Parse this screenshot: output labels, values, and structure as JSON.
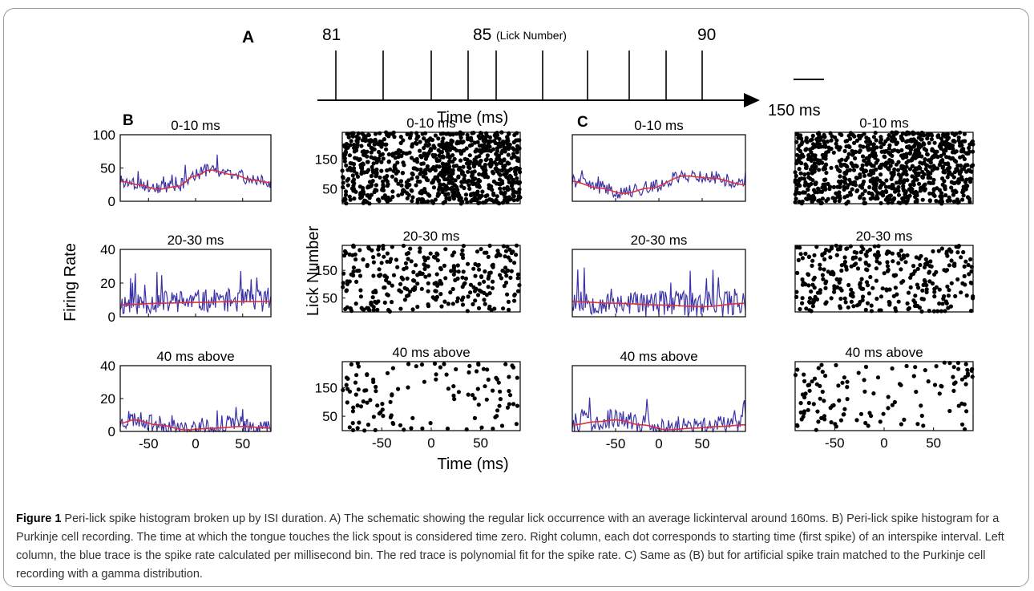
{
  "caption": {
    "label": "Figure 1",
    "text": " Peri-lick spike histogram broken up by ISI duration. A) The schematic showing the regular lick occurrence with an average lickinterval around 160ms. B) Peri-lick spike histogram for a Purkinje cell recording. The time at which the tongue touches the lick spout is considered time zero. Right column, each dot corresponds to starting time (first spike) of an interspike interval. Left column, the blue trace is the spike rate calculated per millisecond bin. The red trace is polynomial fit for the spike rate. C) Same as (B) but for artificial spike train matched to the Purkinje cell recording with a gamma distribution."
  },
  "panel_a": {
    "label": "A",
    "lick_first": "81",
    "lick_mid": "85",
    "lick_mid_note": "(Lick Number)",
    "lick_last": "90",
    "axis_label": "Time (ms)",
    "scale_label": "150 ms"
  },
  "panel_labels": {
    "b": "B",
    "c": "C"
  },
  "axis_text": {
    "firing_rate": "Firing Rate",
    "lick_number": "Lick Number",
    "time": "Time (ms)"
  },
  "row_titles": [
    "0-10 ms",
    "20-30 ms",
    "40 ms above"
  ],
  "colors": {
    "rate_trace": "#3a33a8",
    "fit_trace": "#e0303a",
    "dots": "#000000"
  },
  "chart_data": [
    {
      "type": "schematic",
      "panel": "A",
      "lick_numbers": [
        81,
        82,
        83,
        84,
        85,
        86,
        87,
        88,
        89,
        90
      ],
      "labeled_ticks": [
        81,
        85,
        90
      ],
      "scale_bar_ms": 150
    },
    {
      "type": "line",
      "panel": "B",
      "row": 0,
      "title": "0-10 ms",
      "xlim": [
        -80,
        80
      ],
      "xticks": [
        -50,
        0,
        50
      ],
      "ylim": [
        0,
        100
      ],
      "yticks": [
        0,
        50,
        100
      ],
      "ylabel": "",
      "series": [
        {
          "role": "rate",
          "base": [
            [
              -80,
              30
            ],
            [
              -60,
              25
            ],
            [
              -40,
              18
            ],
            [
              -20,
              22
            ],
            [
              0,
              38
            ],
            [
              15,
              47
            ],
            [
              40,
              40
            ],
            [
              60,
              32
            ],
            [
              80,
              28
            ]
          ],
          "amp": 10,
          "seed": 3
        },
        {
          "role": "fit",
          "base": [
            [
              -80,
              30
            ],
            [
              -60,
              25
            ],
            [
              -40,
              18
            ],
            [
              -20,
              22
            ],
            [
              0,
              38
            ],
            [
              15,
              47
            ],
            [
              40,
              40
            ],
            [
              60,
              32
            ],
            [
              80,
              28
            ]
          ]
        }
      ]
    },
    {
      "type": "line",
      "panel": "B",
      "row": 1,
      "title": "20-30 ms",
      "xlim": [
        -80,
        80
      ],
      "xticks": [
        -50,
        0,
        50
      ],
      "ylim": [
        0,
        40
      ],
      "yticks": [
        0,
        20,
        40
      ],
      "ylabel": "Firing Rate",
      "series": [
        {
          "role": "rate",
          "base": [
            [
              -80,
              7
            ],
            [
              -40,
              8
            ],
            [
              0,
              8.5
            ],
            [
              40,
              9
            ],
            [
              80,
              9
            ]
          ],
          "amp": 7,
          "seed": 11
        },
        {
          "role": "fit",
          "base": [
            [
              -80,
              7
            ],
            [
              -40,
              8
            ],
            [
              0,
              8.5
            ],
            [
              40,
              9
            ],
            [
              80,
              9
            ]
          ]
        }
      ]
    },
    {
      "type": "line",
      "panel": "B",
      "row": 2,
      "title": "40 ms above",
      "xlim": [
        -80,
        80
      ],
      "xticks": [
        -50,
        0,
        50
      ],
      "ylim": [
        0,
        40
      ],
      "yticks": [
        0,
        20,
        40
      ],
      "ylabel": "",
      "series": [
        {
          "role": "rate",
          "base": [
            [
              -80,
              5
            ],
            [
              -65,
              7
            ],
            [
              -40,
              4
            ],
            [
              -10,
              1
            ],
            [
              20,
              2
            ],
            [
              50,
              3
            ],
            [
              80,
              2
            ]
          ],
          "amp": 5,
          "seed": 23
        },
        {
          "role": "fit",
          "base": [
            [
              -80,
              5
            ],
            [
              -65,
              7
            ],
            [
              -40,
              4
            ],
            [
              -10,
              1
            ],
            [
              20,
              2
            ],
            [
              50,
              3
            ],
            [
              80,
              2
            ]
          ]
        }
      ]
    },
    {
      "type": "scatter",
      "panel": "B",
      "row": 0,
      "title": "0-10 ms",
      "xlim": [
        -90,
        90
      ],
      "ylim": [
        0,
        240
      ],
      "yticks": [
        50,
        150
      ],
      "count": 900,
      "seed": 5,
      "density": [
        [
          -90,
          1.0
        ],
        [
          -40,
          0.7
        ],
        [
          -10,
          0.8
        ],
        [
          10,
          1.2
        ],
        [
          90,
          1.0
        ]
      ]
    },
    {
      "type": "scatter",
      "panel": "B",
      "row": 1,
      "title": "20-30 ms",
      "xlim": [
        -90,
        90
      ],
      "ylim": [
        0,
        240
      ],
      "yticks": [
        50,
        150
      ],
      "ylabel": "Lick Number",
      "count": 300,
      "seed": 17,
      "density": [
        [
          -90,
          1
        ],
        [
          90,
          1
        ]
      ]
    },
    {
      "type": "scatter",
      "panel": "B",
      "row": 2,
      "title": "40 ms above",
      "xlim": [
        -90,
        90
      ],
      "xticks": [
        -50,
        0,
        50
      ],
      "ylim": [
        0,
        240
      ],
      "yticks": [
        50,
        150
      ],
      "count": 120,
      "seed": 29,
      "density": [
        [
          -90,
          1.4
        ],
        [
          -40,
          1.0
        ],
        [
          -10,
          0.3
        ],
        [
          20,
          0.6
        ],
        [
          60,
          1.0
        ],
        [
          90,
          1.0
        ]
      ]
    },
    {
      "type": "line",
      "panel": "C",
      "row": 0,
      "title": "0-10 ms",
      "xlim": [
        -100,
        100
      ],
      "xticks": [
        -50,
        0,
        50
      ],
      "ylim": [
        0,
        100
      ],
      "series": [
        {
          "role": "rate",
          "base": [
            [
              -100,
              30
            ],
            [
              -70,
              20
            ],
            [
              -40,
              12
            ],
            [
              -10,
              20
            ],
            [
              30,
              38
            ],
            [
              60,
              35
            ],
            [
              100,
              25
            ]
          ],
          "amp": 10,
          "seed": 41
        },
        {
          "role": "fit",
          "base": [
            [
              -100,
              30
            ],
            [
              -70,
              20
            ],
            [
              -40,
              12
            ],
            [
              -10,
              20
            ],
            [
              30,
              38
            ],
            [
              60,
              35
            ],
            [
              100,
              25
            ]
          ]
        }
      ]
    },
    {
      "type": "line",
      "panel": "C",
      "row": 1,
      "title": "20-30 ms",
      "xlim": [
        -100,
        100
      ],
      "xticks": [
        -50,
        0,
        50
      ],
      "ylim": [
        0,
        40
      ],
      "series": [
        {
          "role": "rate",
          "base": [
            [
              -100,
              9
            ],
            [
              -50,
              8
            ],
            [
              0,
              7
            ],
            [
              50,
              6
            ],
            [
              100,
              8
            ]
          ],
          "amp": 8,
          "seed": 53
        },
        {
          "role": "fit",
          "base": [
            [
              -100,
              9
            ],
            [
              -50,
              8
            ],
            [
              0,
              7
            ],
            [
              50,
              6
            ],
            [
              100,
              8
            ]
          ]
        }
      ]
    },
    {
      "type": "line",
      "panel": "C",
      "row": 2,
      "title": "40 ms above",
      "xlim": [
        -100,
        100
      ],
      "xticks": [
        -50,
        0,
        50
      ],
      "xlabel": "Time (ms)",
      "ylim": [
        0,
        40
      ],
      "series": [
        {
          "role": "rate",
          "base": [
            [
              -100,
              4
            ],
            [
              -70,
              6
            ],
            [
              -50,
              7
            ],
            [
              -20,
              4
            ],
            [
              10,
              1
            ],
            [
              40,
              2
            ],
            [
              70,
              3
            ],
            [
              100,
              4
            ]
          ],
          "amp": 6,
          "seed": 67
        },
        {
          "role": "fit",
          "base": [
            [
              -100,
              4
            ],
            [
              -70,
              6
            ],
            [
              -50,
              7
            ],
            [
              -20,
              4
            ],
            [
              10,
              1
            ],
            [
              40,
              2
            ],
            [
              70,
              3
            ],
            [
              100,
              4
            ]
          ]
        }
      ]
    },
    {
      "type": "scatter",
      "panel": "C",
      "row": 0,
      "title": "0-10 ms",
      "xlim": [
        -90,
        90
      ],
      "ylim": [
        0,
        240
      ],
      "count": 900,
      "seed": 71,
      "density": [
        [
          -90,
          1
        ],
        [
          -30,
          0.8
        ],
        [
          0,
          1.1
        ],
        [
          90,
          1
        ]
      ]
    },
    {
      "type": "scatter",
      "panel": "C",
      "row": 1,
      "title": "20-30 ms",
      "xlim": [
        -90,
        90
      ],
      "ylim": [
        0,
        240
      ],
      "count": 320,
      "seed": 83,
      "density": [
        [
          -90,
          1
        ],
        [
          90,
          1
        ]
      ]
    },
    {
      "type": "scatter",
      "panel": "C",
      "row": 2,
      "title": "40 ms above",
      "xlim": [
        -90,
        90
      ],
      "xticks": [
        -50,
        0,
        50
      ],
      "ylim": [
        0,
        240
      ],
      "count": 120,
      "seed": 97,
      "density": [
        [
          -90,
          1.3
        ],
        [
          -40,
          1.0
        ],
        [
          -10,
          0.4
        ],
        [
          30,
          0.6
        ],
        [
          90,
          1.0
        ]
      ]
    }
  ]
}
